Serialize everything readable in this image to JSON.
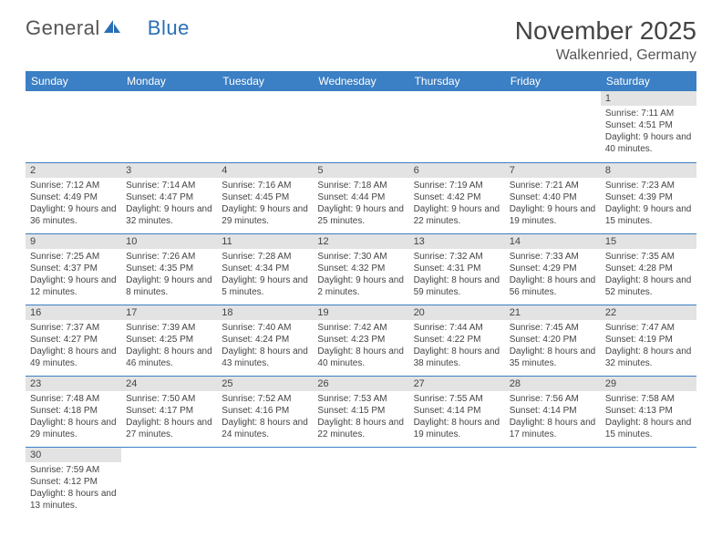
{
  "logo": {
    "text1": "General",
    "text2": "Blue"
  },
  "title": "November 2025",
  "location": "Walkenried, Germany",
  "colors": {
    "header_bg": "#3b7fc4",
    "header_text": "#ffffff",
    "daynum_bg": "#e3e3e3",
    "border": "#3b7fc4",
    "logo_blue": "#2a6fb5"
  },
  "type": "table",
  "columns": [
    "Sunday",
    "Monday",
    "Tuesday",
    "Wednesday",
    "Thursday",
    "Friday",
    "Saturday"
  ],
  "weeks": [
    [
      null,
      null,
      null,
      null,
      null,
      null,
      {
        "n": "1",
        "sunrise": "Sunrise: 7:11 AM",
        "sunset": "Sunset: 4:51 PM",
        "daylight": "Daylight: 9 hours and 40 minutes."
      }
    ],
    [
      {
        "n": "2",
        "sunrise": "Sunrise: 7:12 AM",
        "sunset": "Sunset: 4:49 PM",
        "daylight": "Daylight: 9 hours and 36 minutes."
      },
      {
        "n": "3",
        "sunrise": "Sunrise: 7:14 AM",
        "sunset": "Sunset: 4:47 PM",
        "daylight": "Daylight: 9 hours and 32 minutes."
      },
      {
        "n": "4",
        "sunrise": "Sunrise: 7:16 AM",
        "sunset": "Sunset: 4:45 PM",
        "daylight": "Daylight: 9 hours and 29 minutes."
      },
      {
        "n": "5",
        "sunrise": "Sunrise: 7:18 AM",
        "sunset": "Sunset: 4:44 PM",
        "daylight": "Daylight: 9 hours and 25 minutes."
      },
      {
        "n": "6",
        "sunrise": "Sunrise: 7:19 AM",
        "sunset": "Sunset: 4:42 PM",
        "daylight": "Daylight: 9 hours and 22 minutes."
      },
      {
        "n": "7",
        "sunrise": "Sunrise: 7:21 AM",
        "sunset": "Sunset: 4:40 PM",
        "daylight": "Daylight: 9 hours and 19 minutes."
      },
      {
        "n": "8",
        "sunrise": "Sunrise: 7:23 AM",
        "sunset": "Sunset: 4:39 PM",
        "daylight": "Daylight: 9 hours and 15 minutes."
      }
    ],
    [
      {
        "n": "9",
        "sunrise": "Sunrise: 7:25 AM",
        "sunset": "Sunset: 4:37 PM",
        "daylight": "Daylight: 9 hours and 12 minutes."
      },
      {
        "n": "10",
        "sunrise": "Sunrise: 7:26 AM",
        "sunset": "Sunset: 4:35 PM",
        "daylight": "Daylight: 9 hours and 8 minutes."
      },
      {
        "n": "11",
        "sunrise": "Sunrise: 7:28 AM",
        "sunset": "Sunset: 4:34 PM",
        "daylight": "Daylight: 9 hours and 5 minutes."
      },
      {
        "n": "12",
        "sunrise": "Sunrise: 7:30 AM",
        "sunset": "Sunset: 4:32 PM",
        "daylight": "Daylight: 9 hours and 2 minutes."
      },
      {
        "n": "13",
        "sunrise": "Sunrise: 7:32 AM",
        "sunset": "Sunset: 4:31 PM",
        "daylight": "Daylight: 8 hours and 59 minutes."
      },
      {
        "n": "14",
        "sunrise": "Sunrise: 7:33 AM",
        "sunset": "Sunset: 4:29 PM",
        "daylight": "Daylight: 8 hours and 56 minutes."
      },
      {
        "n": "15",
        "sunrise": "Sunrise: 7:35 AM",
        "sunset": "Sunset: 4:28 PM",
        "daylight": "Daylight: 8 hours and 52 minutes."
      }
    ],
    [
      {
        "n": "16",
        "sunrise": "Sunrise: 7:37 AM",
        "sunset": "Sunset: 4:27 PM",
        "daylight": "Daylight: 8 hours and 49 minutes."
      },
      {
        "n": "17",
        "sunrise": "Sunrise: 7:39 AM",
        "sunset": "Sunset: 4:25 PM",
        "daylight": "Daylight: 8 hours and 46 minutes."
      },
      {
        "n": "18",
        "sunrise": "Sunrise: 7:40 AM",
        "sunset": "Sunset: 4:24 PM",
        "daylight": "Daylight: 8 hours and 43 minutes."
      },
      {
        "n": "19",
        "sunrise": "Sunrise: 7:42 AM",
        "sunset": "Sunset: 4:23 PM",
        "daylight": "Daylight: 8 hours and 40 minutes."
      },
      {
        "n": "20",
        "sunrise": "Sunrise: 7:44 AM",
        "sunset": "Sunset: 4:22 PM",
        "daylight": "Daylight: 8 hours and 38 minutes."
      },
      {
        "n": "21",
        "sunrise": "Sunrise: 7:45 AM",
        "sunset": "Sunset: 4:20 PM",
        "daylight": "Daylight: 8 hours and 35 minutes."
      },
      {
        "n": "22",
        "sunrise": "Sunrise: 7:47 AM",
        "sunset": "Sunset: 4:19 PM",
        "daylight": "Daylight: 8 hours and 32 minutes."
      }
    ],
    [
      {
        "n": "23",
        "sunrise": "Sunrise: 7:48 AM",
        "sunset": "Sunset: 4:18 PM",
        "daylight": "Daylight: 8 hours and 29 minutes."
      },
      {
        "n": "24",
        "sunrise": "Sunrise: 7:50 AM",
        "sunset": "Sunset: 4:17 PM",
        "daylight": "Daylight: 8 hours and 27 minutes."
      },
      {
        "n": "25",
        "sunrise": "Sunrise: 7:52 AM",
        "sunset": "Sunset: 4:16 PM",
        "daylight": "Daylight: 8 hours and 24 minutes."
      },
      {
        "n": "26",
        "sunrise": "Sunrise: 7:53 AM",
        "sunset": "Sunset: 4:15 PM",
        "daylight": "Daylight: 8 hours and 22 minutes."
      },
      {
        "n": "27",
        "sunrise": "Sunrise: 7:55 AM",
        "sunset": "Sunset: 4:14 PM",
        "daylight": "Daylight: 8 hours and 19 minutes."
      },
      {
        "n": "28",
        "sunrise": "Sunrise: 7:56 AM",
        "sunset": "Sunset: 4:14 PM",
        "daylight": "Daylight: 8 hours and 17 minutes."
      },
      {
        "n": "29",
        "sunrise": "Sunrise: 7:58 AM",
        "sunset": "Sunset: 4:13 PM",
        "daylight": "Daylight: 8 hours and 15 minutes."
      }
    ],
    [
      {
        "n": "30",
        "sunrise": "Sunrise: 7:59 AM",
        "sunset": "Sunset: 4:12 PM",
        "daylight": "Daylight: 8 hours and 13 minutes."
      },
      null,
      null,
      null,
      null,
      null,
      null
    ]
  ]
}
